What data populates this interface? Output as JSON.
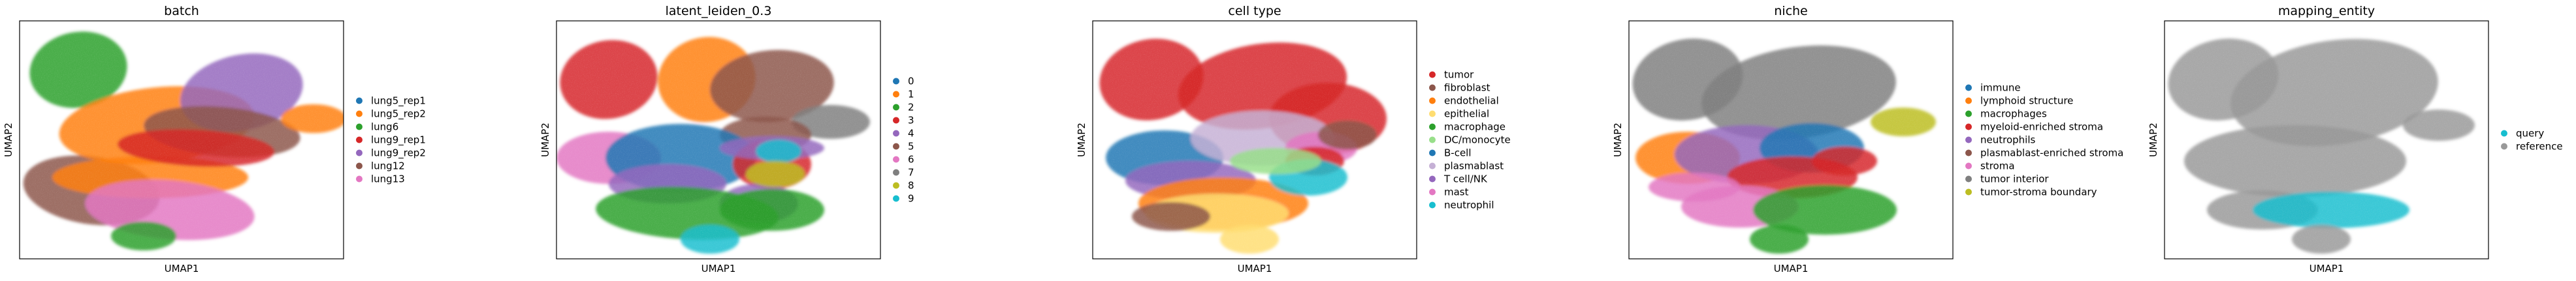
{
  "chart_data": [
    {
      "type": "scatter",
      "title": "batch",
      "xlabel": "UMAP1",
      "ylabel": "UMAP2",
      "grid": false,
      "legend_position": "right",
      "series": [
        {
          "name": "lung5_rep1",
          "color": "#1f77b4"
        },
        {
          "name": "lung5_rep2",
          "color": "#ff7f0e"
        },
        {
          "name": "lung6",
          "color": "#2ca02c"
        },
        {
          "name": "lung9_rep1",
          "color": "#d62728"
        },
        {
          "name": "lung9_rep2",
          "color": "#9467bd"
        },
        {
          "name": "lung12",
          "color": "#8c564b"
        },
        {
          "name": "lung13",
          "color": "#e377c2"
        }
      ]
    },
    {
      "type": "scatter",
      "title": "latent_leiden_0.3",
      "xlabel": "UMAP1",
      "ylabel": "UMAP2",
      "grid": false,
      "legend_position": "right",
      "series": [
        {
          "name": "0",
          "color": "#1f77b4"
        },
        {
          "name": "1",
          "color": "#ff7f0e"
        },
        {
          "name": "2",
          "color": "#2ca02c"
        },
        {
          "name": "3",
          "color": "#d62728"
        },
        {
          "name": "4",
          "color": "#9467bd"
        },
        {
          "name": "5",
          "color": "#8c564b"
        },
        {
          "name": "6",
          "color": "#e377c2"
        },
        {
          "name": "7",
          "color": "#7f7f7f"
        },
        {
          "name": "8",
          "color": "#bcbd22"
        },
        {
          "name": "9",
          "color": "#17becf"
        }
      ]
    },
    {
      "type": "scatter",
      "title": "cell type",
      "xlabel": "UMAP1",
      "ylabel": "UMAP2",
      "grid": false,
      "legend_position": "right",
      "series": [
        {
          "name": "tumor",
          "color": "#d62728"
        },
        {
          "name": "fibroblast",
          "color": "#8c564b"
        },
        {
          "name": "endothelial",
          "color": "#ff7f0e"
        },
        {
          "name": "epithelial",
          "color": "#ffdd71"
        },
        {
          "name": "macrophage",
          "color": "#2ca02c"
        },
        {
          "name": "DC/monocyte",
          "color": "#98df8a"
        },
        {
          "name": "B-cell",
          "color": "#1f77b4"
        },
        {
          "name": "plasmablast",
          "color": "#c5b0d5"
        },
        {
          "name": "T cell/NK",
          "color": "#9467bd"
        },
        {
          "name": "mast",
          "color": "#e377c2"
        },
        {
          "name": "neutrophil",
          "color": "#17becf"
        }
      ]
    },
    {
      "type": "scatter",
      "title": "niche",
      "xlabel": "UMAP1",
      "ylabel": "UMAP2",
      "grid": false,
      "legend_position": "right",
      "series": [
        {
          "name": "immune",
          "color": "#1f77b4"
        },
        {
          "name": "lymphoid structure",
          "color": "#ff7f0e"
        },
        {
          "name": "macrophages",
          "color": "#2ca02c"
        },
        {
          "name": "myeloid-enriched stroma",
          "color": "#d62728"
        },
        {
          "name": "neutrophils",
          "color": "#9467bd"
        },
        {
          "name": "plasmablast-enriched stroma",
          "color": "#8c564b"
        },
        {
          "name": "stroma",
          "color": "#e377c2"
        },
        {
          "name": "tumor interior",
          "color": "#7f7f7f"
        },
        {
          "name": "tumor-stroma boundary",
          "color": "#bcbd22"
        }
      ]
    },
    {
      "type": "scatter",
      "title": "mapping_entity",
      "xlabel": "UMAP1",
      "ylabel": "UMAP2",
      "grid": false,
      "legend_position": "right",
      "series": [
        {
          "name": "query",
          "color": "#17becf"
        },
        {
          "name": "reference",
          "color": "#999999"
        }
      ]
    }
  ]
}
